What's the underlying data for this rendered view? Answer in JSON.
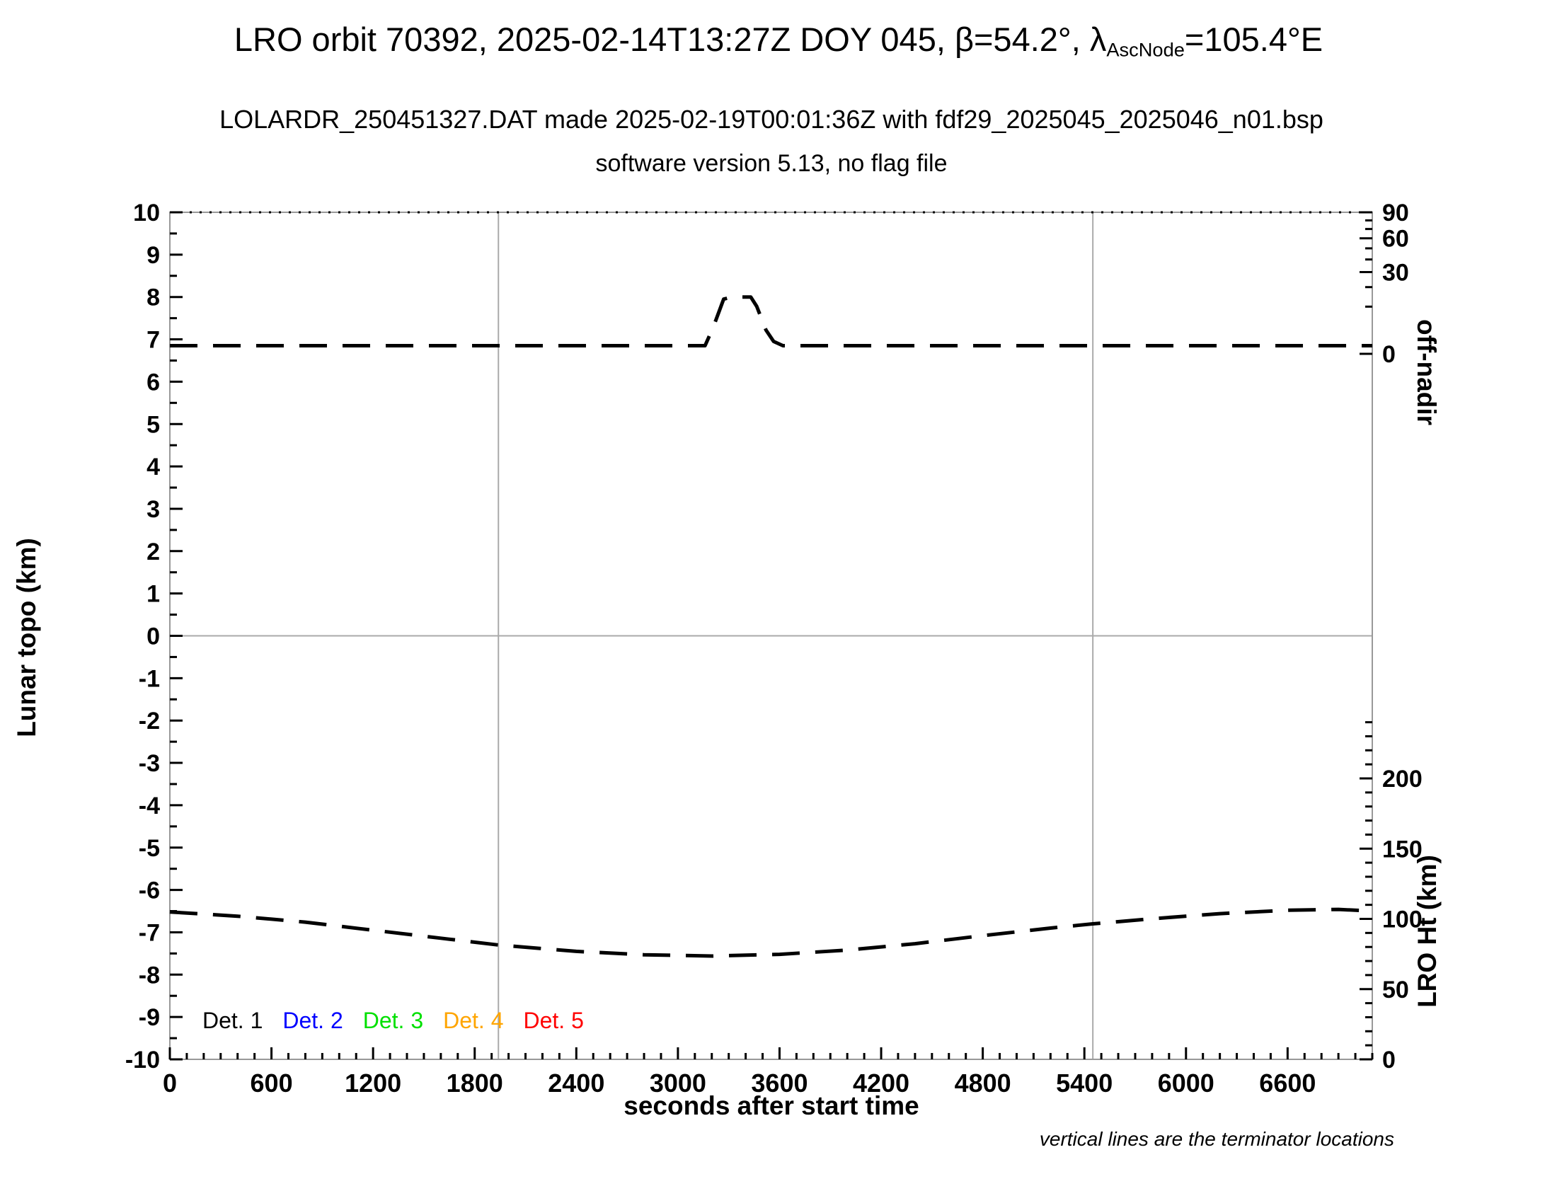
{
  "header": {
    "title_prefix": "LRO orbit 70392, 2025-02-14T13:27Z DOY 045, β=54.2°, λ",
    "title_subscript": "AscNode",
    "title_suffix": "=105.4°E",
    "subtitle": "LOLARDR_250451327.DAT made 2025-02-19T00:01:36Z with fdf29_2025045_2025046_n01.bsp",
    "version_line": "software version 5.13, no flag file"
  },
  "axes": {
    "x": {
      "label": "seconds after start time",
      "min": 0,
      "max": 7100,
      "major_tick_step": 600,
      "last_labeled_tick": 6600,
      "minor_tick_step": 100
    },
    "y_left": {
      "label": "Lunar topo (km)",
      "min": -10,
      "max": 10,
      "major_tick_step": 1,
      "minor_tick_step": 0.5
    },
    "y_right_top": {
      "label": "off-nadir",
      "unit": "degrees",
      "scale": "sqrt",
      "tick_values": [
        90,
        60,
        30,
        0
      ],
      "minor_tick_values": [
        10,
        20,
        40,
        50,
        70,
        80
      ]
    },
    "y_right_bottom": {
      "label": "LRO Ht (km)",
      "tick_values": [
        200,
        150,
        100,
        50,
        0
      ],
      "minor_tick_step": 10,
      "minor_tick_max": 240
    }
  },
  "annotations": {
    "terminator_lines_s": [
      1940,
      5450
    ],
    "zero_topo_gridline": 0,
    "footnote": "vertical lines are the terminator locations"
  },
  "legend": {
    "items": [
      {
        "label": "Det. 1",
        "color": "#000000"
      },
      {
        "label": "Det. 2",
        "color": "#0000ff"
      },
      {
        "label": "Det. 3",
        "color": "#00e000"
      },
      {
        "label": "Det. 4",
        "color": "#ffa500"
      },
      {
        "label": "Det. 5",
        "color": "#ff0000"
      }
    ]
  },
  "chart_data": {
    "type": "line",
    "x_unit": "seconds after start time",
    "x_range": [
      0,
      7100
    ],
    "grid": "terminator verticals at 1940 s and 5450 s, horizontal line at topo 0 km",
    "series": [
      {
        "name": "off-nadir angle",
        "y_axis": "right-top (off-nadir, sqrt-scaled: 0 deg at topo 6.67, 30/60/90 deg above)",
        "line_style": "dashed",
        "color": "#000000",
        "points_topo_units": [
          [
            0,
            6.85
          ],
          [
            3160,
            6.85
          ],
          [
            3210,
            7.3
          ],
          [
            3270,
            7.95
          ],
          [
            3320,
            8.0
          ],
          [
            3430,
            8.0
          ],
          [
            3465,
            7.78
          ],
          [
            3520,
            7.22
          ],
          [
            3565,
            6.95
          ],
          [
            3620,
            6.85
          ],
          [
            7100,
            6.85
          ]
        ],
        "reading": "off-nadir approximately 0 deg for whole pass except a slew to roughly 20 deg between about 3200 s and 3600 s"
      },
      {
        "name": "LRO height",
        "y_axis": "right-bottom (LRO Ht km: 0 km at topo -10, 200 km at topo -3.35)",
        "line_style": "dashed",
        "color": "#000000",
        "points_topo_units": [
          [
            0,
            -6.52
          ],
          [
            400,
            -6.62
          ],
          [
            800,
            -6.76
          ],
          [
            1200,
            -6.95
          ],
          [
            1600,
            -7.14
          ],
          [
            1940,
            -7.3
          ],
          [
            2400,
            -7.45
          ],
          [
            2800,
            -7.53
          ],
          [
            3200,
            -7.56
          ],
          [
            3600,
            -7.52
          ],
          [
            4000,
            -7.42
          ],
          [
            4400,
            -7.27
          ],
          [
            4800,
            -7.08
          ],
          [
            5200,
            -6.9
          ],
          [
            5450,
            -6.8
          ],
          [
            5800,
            -6.68
          ],
          [
            6200,
            -6.56
          ],
          [
            6600,
            -6.48
          ],
          [
            6900,
            -6.46
          ],
          [
            7100,
            -6.5
          ]
        ],
        "reading": "spacecraft altitude about 107 km at start, minimum about 75 km near 3200 s, back to about 106 km at end of pass"
      }
    ]
  },
  "colors": {
    "background": "#ffffff",
    "axis_frame": "#999999",
    "gridline": "#aaaaaa",
    "tick": "#000000",
    "curve": "#000000"
  }
}
